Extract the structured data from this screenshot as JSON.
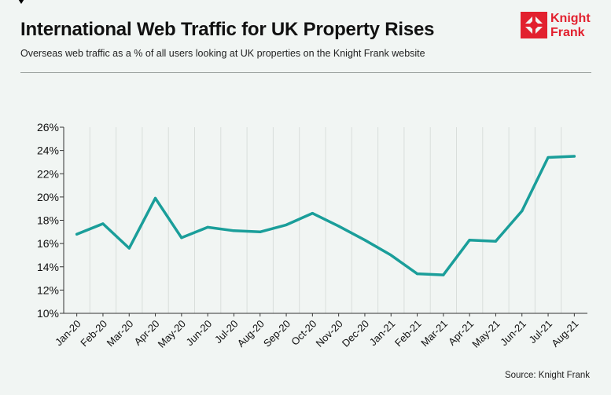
{
  "header": {
    "title": "International Web Traffic for UK Property Rises",
    "subtitle": "Overseas web traffic as a % of all users looking at UK properties on the Knight Frank website"
  },
  "logo": {
    "line1": "Knight",
    "line2": "Frank",
    "color": "#e2202e"
  },
  "footer": {
    "source": "Source: Knight Frank"
  },
  "chart_data": {
    "type": "line",
    "categories": [
      "Jan-20",
      "Feb-20",
      "Mar-20",
      "Apr-20",
      "May-20",
      "Jun-20",
      "Jul-20",
      "Aug-20",
      "Sep-20",
      "Oct-20",
      "Nov-20",
      "Dec-20",
      "Jan-21",
      "Feb-21",
      "Mar-21",
      "Apr-21",
      "May-21",
      "Jun-21",
      "Jul-21",
      "Aug-21"
    ],
    "series": [
      {
        "values": [
          16.8,
          17.7,
          15.6,
          19.9,
          16.5,
          17.4,
          17.1,
          17.0,
          17.6,
          18.6,
          17.5,
          16.3,
          15.0,
          13.4,
          13.3,
          16.3,
          16.2,
          18.8,
          23.4,
          23.5
        ],
        "color": "#1a9e9a"
      }
    ],
    "yticks": [
      "10%",
      "12%",
      "14%",
      "16%",
      "18%",
      "20%",
      "22%",
      "24%",
      "26%"
    ],
    "ylim": [
      10,
      26
    ],
    "grid": "vertical",
    "legend": "none"
  }
}
